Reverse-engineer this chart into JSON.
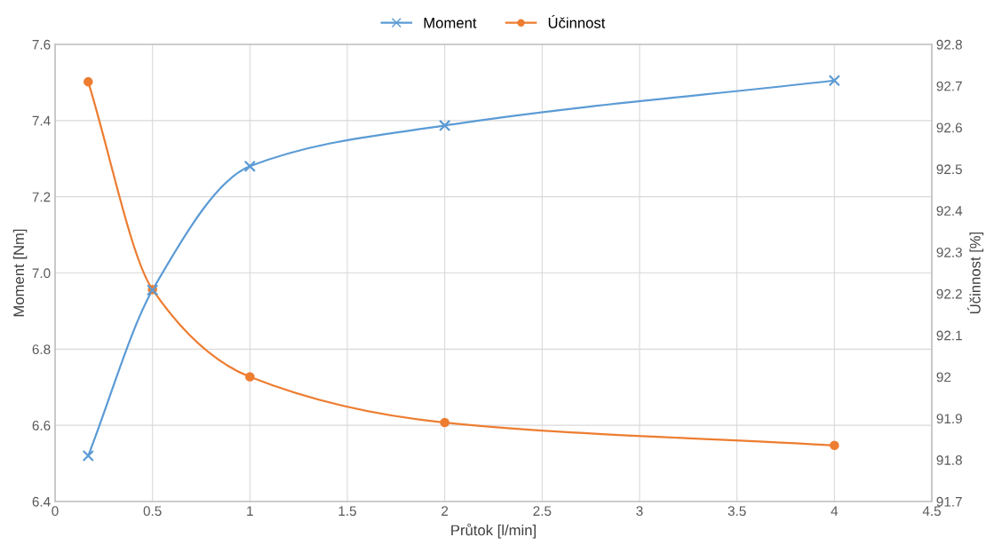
{
  "chart_data": {
    "type": "line",
    "xlabel": "Průtok [l/min]",
    "ylabel": "Moment [Nm]",
    "y2label": "Účinnost [%]",
    "x": [
      0.17,
      0.5,
      1,
      2,
      4
    ],
    "series": [
      {
        "name": "Moment",
        "color": "#5b9bd5",
        "marker": "cross",
        "values": [
          6.52,
          6.955,
          7.28,
          7.387,
          7.505
        ]
      },
      {
        "name": "Účinnost",
        "color": "#ed7d31",
        "marker": "circle",
        "axis": "y2",
        "values": [
          92.71,
          92.21,
          92.0,
          91.89,
          91.835
        ]
      }
    ],
    "xlim": [
      0,
      4.5
    ],
    "xticks": [
      0,
      0.5,
      1,
      1.5,
      2,
      2.5,
      3,
      3.5,
      4,
      4.5
    ],
    "ylim": [
      6.4,
      7.6
    ],
    "yticks": [
      6.4,
      6.6,
      6.8,
      {
        "value": 7,
        "label": "7.0"
      },
      7.2,
      7.4,
      7.6
    ],
    "y2lim": [
      91.7,
      92.8
    ],
    "y2ticks": [
      91.7,
      91.8,
      91.9,
      92,
      92.1,
      92.2,
      92.3,
      92.4,
      92.5,
      92.6,
      92.7,
      92.8
    ],
    "grid": true,
    "legend": "top",
    "line_style": "solid"
  }
}
